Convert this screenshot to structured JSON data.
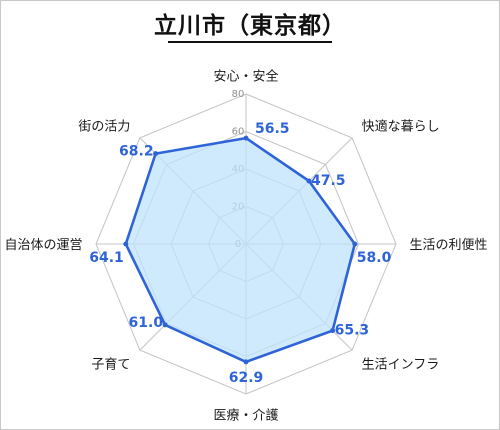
{
  "title": "立川市（東京都）",
  "chart_data": {
    "type": "radar",
    "title": "立川市（東京都）",
    "categories": [
      "安心・安全",
      "快適な暮らし",
      "生活の利便性",
      "生活インフラ",
      "医療・介護",
      "子育て",
      "自治体の運営",
      "街の活力"
    ],
    "values": [
      56.5,
      47.5,
      58.0,
      65.3,
      62.9,
      61.0,
      64.1,
      68.2
    ],
    "value_labels": [
      "56.5",
      "47.5",
      "58.0",
      "65.3",
      "62.9",
      "61.0",
      "64.1",
      "68.2"
    ],
    "rlim": [
      0,
      80
    ],
    "ticks": [
      0,
      20,
      40,
      60,
      80
    ],
    "tick_labels": [
      "0",
      "20",
      "40",
      "60",
      "80"
    ],
    "grid": true,
    "line_color": "#2f64d6",
    "fill_color": "#bfe3fb",
    "grid_color": "#c4c4c4",
    "label_color": "#2f64d6"
  }
}
